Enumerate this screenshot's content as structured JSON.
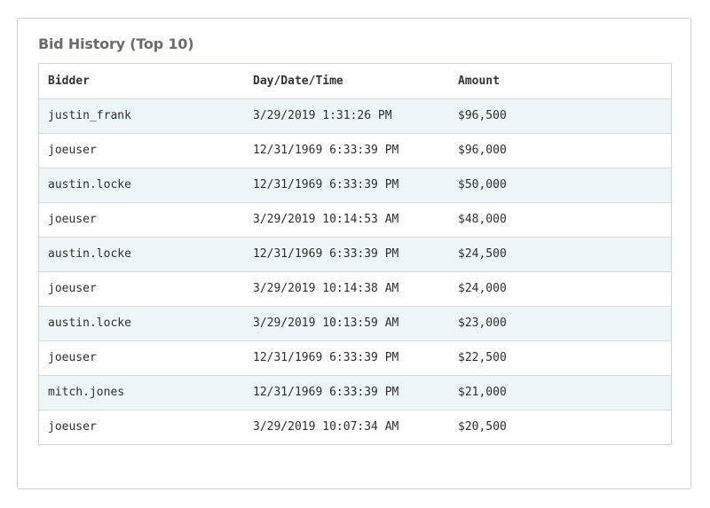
{
  "panel": {
    "title": "Bid History (Top 10)"
  },
  "table": {
    "headers": {
      "bidder": "Bidder",
      "datetime": "Day/Date/Time",
      "amount": "Amount"
    },
    "rows": [
      {
        "bidder": "justin_frank",
        "datetime": "3/29/2019 1:31:26 PM",
        "amount": "$96,500"
      },
      {
        "bidder": "joeuser",
        "datetime": "12/31/1969 6:33:39 PM",
        "amount": "$96,000"
      },
      {
        "bidder": "austin.locke",
        "datetime": "12/31/1969 6:33:39 PM",
        "amount": "$50,000"
      },
      {
        "bidder": "joeuser",
        "datetime": "3/29/2019 10:14:53 AM",
        "amount": "$48,000"
      },
      {
        "bidder": "austin.locke",
        "datetime": "12/31/1969 6:33:39 PM",
        "amount": "$24,500"
      },
      {
        "bidder": "joeuser",
        "datetime": "3/29/2019 10:14:38 AM",
        "amount": "$24,000"
      },
      {
        "bidder": "austin.locke",
        "datetime": "3/29/2019 10:13:59 AM",
        "amount": "$23,000"
      },
      {
        "bidder": "joeuser",
        "datetime": "12/31/1969 6:33:39 PM",
        "amount": "$22,500"
      },
      {
        "bidder": "mitch.jones",
        "datetime": "12/31/1969 6:33:39 PM",
        "amount": "$21,000"
      },
      {
        "bidder": "joeuser",
        "datetime": "3/29/2019 10:07:34 AM",
        "amount": "$20,500"
      }
    ]
  },
  "colors": {
    "stripe": "#eef6fa",
    "border": "#cfd6db",
    "title": "#6b6b6b"
  }
}
